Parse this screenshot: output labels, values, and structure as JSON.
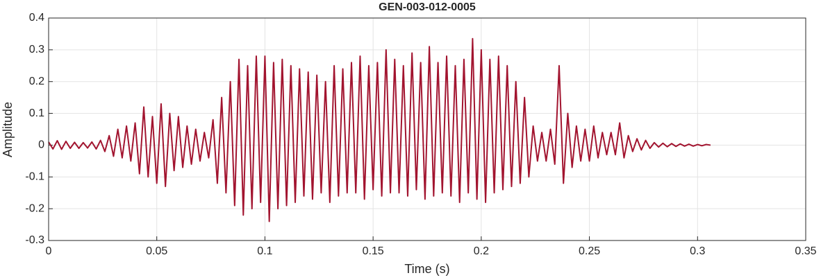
{
  "chart_data": {
    "type": "line",
    "title": "GEN-003-012-0005",
    "x_label": "Time (s)",
    "y_label": "Amplitude",
    "x": [
      0,
      0.002,
      0.004,
      0.006,
      0.008,
      0.01,
      0.012,
      0.014,
      0.016,
      0.018,
      0.02,
      0.022,
      0.024,
      0.026,
      0.028,
      0.03,
      0.032,
      0.034,
      0.036,
      0.038,
      0.04,
      0.042,
      0.044,
      0.046,
      0.048,
      0.05,
      0.052,
      0.054,
      0.056,
      0.058,
      0.06,
      0.062,
      0.064,
      0.066,
      0.068,
      0.07,
      0.072,
      0.074,
      0.076,
      0.078,
      0.08,
      0.082,
      0.084,
      0.086,
      0.088,
      0.09,
      0.092,
      0.094,
      0.096,
      0.098,
      0.1,
      0.102,
      0.104,
      0.106,
      0.108,
      0.11,
      0.112,
      0.114,
      0.116,
      0.118,
      0.12,
      0.122,
      0.124,
      0.126,
      0.128,
      0.13,
      0.132,
      0.134,
      0.136,
      0.138,
      0.14,
      0.142,
      0.144,
      0.146,
      0.148,
      0.15,
      0.152,
      0.154,
      0.156,
      0.158,
      0.16,
      0.162,
      0.164,
      0.166,
      0.168,
      0.17,
      0.172,
      0.174,
      0.176,
      0.178,
      0.18,
      0.182,
      0.184,
      0.186,
      0.188,
      0.19,
      0.192,
      0.194,
      0.196,
      0.198,
      0.2,
      0.202,
      0.204,
      0.206,
      0.208,
      0.21,
      0.212,
      0.214,
      0.216,
      0.218,
      0.22,
      0.222,
      0.224,
      0.226,
      0.228,
      0.23,
      0.232,
      0.234,
      0.236,
      0.238,
      0.24,
      0.242,
      0.244,
      0.246,
      0.248,
      0.25,
      0.252,
      0.254,
      0.256,
      0.258,
      0.26,
      0.262,
      0.264,
      0.266,
      0.268,
      0.27,
      0.272,
      0.274,
      0.276,
      0.278,
      0.28,
      0.282,
      0.284,
      0.286,
      0.288,
      0.29,
      0.292,
      0.294,
      0.296,
      0.298,
      0.3,
      0.302,
      0.304,
      0.306
    ],
    "series": [
      {
        "color": "#a2142f",
        "values": [
          0.01,
          -0.012,
          0.014,
          -0.013,
          0.012,
          -0.01,
          0.009,
          -0.01,
          0.008,
          -0.009,
          0.01,
          -0.012,
          0.015,
          -0.02,
          0.03,
          -0.035,
          0.05,
          -0.04,
          0.06,
          -0.05,
          0.07,
          -0.09,
          0.12,
          -0.1,
          0.09,
          -0.12,
          0.13,
          -0.13,
          0.1,
          -0.08,
          0.09,
          -0.07,
          0.06,
          -0.06,
          0.05,
          -0.05,
          0.04,
          -0.04,
          0.08,
          -0.12,
          0.15,
          -0.15,
          0.2,
          -0.19,
          0.27,
          -0.22,
          0.25,
          -0.2,
          0.28,
          -0.18,
          0.28,
          -0.24,
          0.26,
          -0.2,
          0.27,
          -0.19,
          0.25,
          -0.18,
          0.24,
          -0.16,
          0.23,
          -0.17,
          0.22,
          -0.15,
          0.2,
          -0.18,
          0.25,
          -0.16,
          0.24,
          -0.15,
          0.26,
          -0.15,
          0.28,
          -0.17,
          0.25,
          -0.14,
          0.26,
          -0.16,
          0.3,
          -0.15,
          0.27,
          -0.15,
          0.25,
          -0.16,
          0.29,
          -0.14,
          0.26,
          -0.17,
          0.31,
          -0.16,
          0.26,
          -0.15,
          0.28,
          -0.16,
          0.25,
          -0.18,
          0.27,
          -0.15,
          0.335,
          -0.17,
          0.3,
          -0.18,
          0.27,
          -0.15,
          0.28,
          -0.14,
          0.25,
          -0.13,
          0.2,
          -0.12,
          0.15,
          -0.1,
          0.06,
          -0.05,
          0.04,
          -0.05,
          0.05,
          -0.06,
          0.25,
          -0.12,
          0.1,
          -0.07,
          0.06,
          -0.05,
          0.05,
          -0.05,
          0.06,
          -0.04,
          0.04,
          -0.03,
          0.04,
          -0.03,
          0.07,
          -0.04,
          0.03,
          -0.02,
          0.02,
          -0.015,
          0.015,
          -0.01,
          0.008,
          -0.006,
          0.006,
          -0.005,
          0.005,
          -0.004,
          0.004,
          -0.003,
          0.003,
          -0.003,
          0.002,
          -0.002,
          0.002,
          0
        ]
      }
    ],
    "xlim": [
      0,
      0.35
    ],
    "xticks": [
      0,
      0.05,
      0.1,
      0.15,
      0.2,
      0.25,
      0.3,
      0.35
    ],
    "ylim": [
      -0.3,
      0.4
    ],
    "yticks": [
      -0.3,
      -0.2,
      -0.1,
      0,
      0.1,
      0.2,
      0.3,
      0.4
    ],
    "grid": true
  }
}
